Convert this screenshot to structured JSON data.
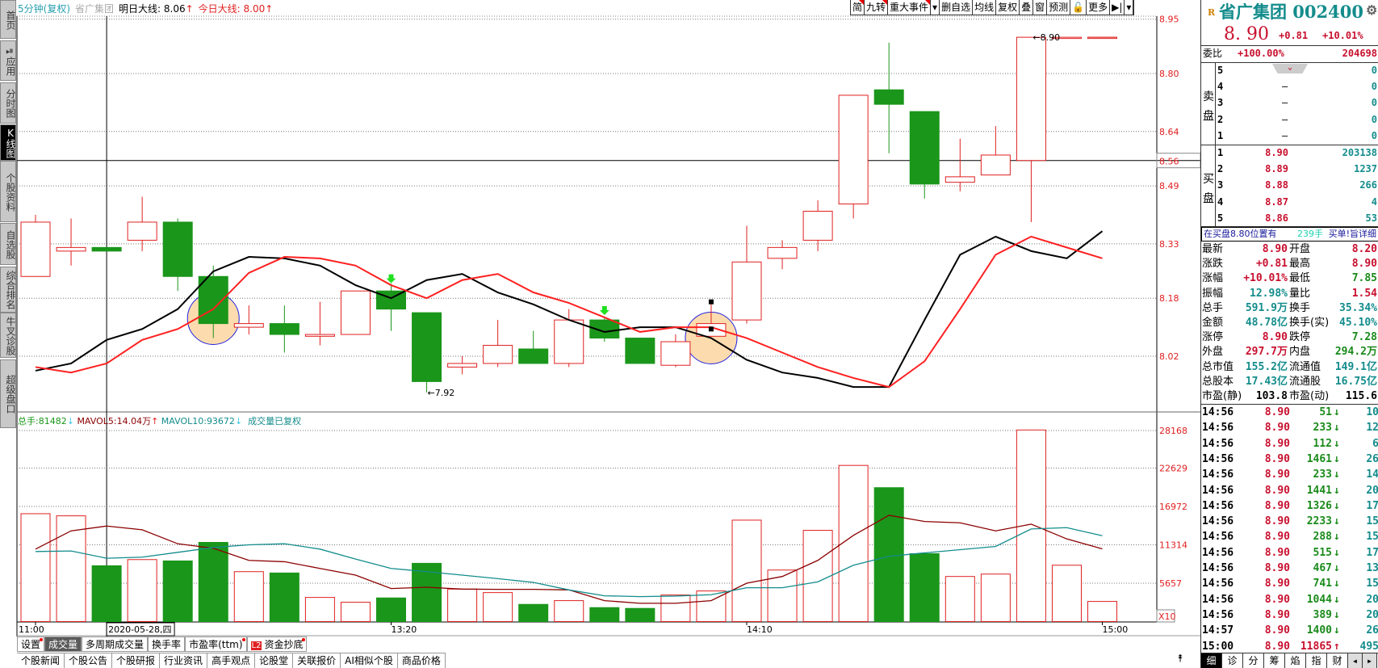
{
  "sidebar": {
    "tabs": [
      "首页",
      "应用",
      "分时图",
      "K线图",
      "个股资料",
      "自选股",
      "综合排名",
      "牛叉诊股",
      "超级盘口"
    ],
    "active": "K线图"
  },
  "header": {
    "period": "5分钟(复权)",
    "name": "省广集团",
    "tomorrow_label": "明日大线:",
    "tomorrow_value": "8.06",
    "today_label": "今日大线:",
    "today_value": "8.00",
    "arrow": "↑"
  },
  "toolbar": {
    "buttons": [
      "简",
      "九转",
      "重大事件",
      "▾",
      "删自选",
      "均线",
      "复权",
      "叠",
      "窗",
      "预测",
      "🔓",
      "更多",
      "▶|",
      "▾"
    ]
  },
  "chart_data": [
    {
      "type": "candlestick",
      "interval": "5分钟",
      "y_ticks": [
        8.95,
        8.8,
        8.64,
        8.49,
        8.33,
        8.18,
        8.02
      ],
      "current_price_line": 8.56,
      "ohlc": [
        [
          8.24,
          8.41,
          8.24,
          8.39
        ],
        [
          8.31,
          8.4,
          8.27,
          8.32
        ],
        [
          8.32,
          8.32,
          8.31,
          8.31
        ],
        [
          8.34,
          8.46,
          8.31,
          8.39
        ],
        [
          8.39,
          8.4,
          8.2,
          8.24
        ],
        [
          8.24,
          8.27,
          8.07,
          8.11
        ],
        [
          8.1,
          8.16,
          8.08,
          8.11
        ],
        [
          8.11,
          8.16,
          8.03,
          8.08
        ],
        [
          8.075,
          8.17,
          8.05,
          8.08
        ],
        [
          8.08,
          8.2,
          8.08,
          8.2
        ],
        [
          8.2,
          8.22,
          8.09,
          8.15
        ],
        [
          8.14,
          8.14,
          7.92,
          7.95
        ],
        [
          7.99,
          8.02,
          7.97,
          8.0
        ],
        [
          8.0,
          8.12,
          7.99,
          8.05
        ],
        [
          8.04,
          8.09,
          8.0,
          8.0
        ],
        [
          8.0,
          8.15,
          7.99,
          8.12
        ],
        [
          8.12,
          8.13,
          8.06,
          8.07
        ],
        [
          8.07,
          8.07,
          8.0,
          8.0
        ],
        [
          7.995,
          8.08,
          7.99,
          8.06
        ],
        [
          8.075,
          8.17,
          8.075,
          8.11
        ],
        [
          8.12,
          8.38,
          8.11,
          8.28
        ],
        [
          8.29,
          8.34,
          8.26,
          8.32
        ],
        [
          8.34,
          8.45,
          8.31,
          8.42
        ],
        [
          8.44,
          8.74,
          8.4,
          8.74
        ],
        [
          8.755,
          8.885,
          8.58,
          8.715
        ],
        [
          8.695,
          8.695,
          8.455,
          8.495
        ],
        [
          8.5,
          8.62,
          8.475,
          8.515
        ],
        [
          8.52,
          8.655,
          8.52,
          8.575
        ],
        [
          8.56,
          8.9,
          8.39,
          8.9
        ],
        [
          8.9,
          8.9,
          8.9,
          8.9
        ],
        [
          8.9,
          8.9,
          8.9,
          8.9
        ]
      ],
      "ma_black": [
        7.98,
        8.0,
        8.065,
        8.095,
        8.15,
        8.254,
        8.294,
        8.29,
        8.27,
        8.216,
        8.18,
        8.23,
        8.247,
        8.196,
        8.163,
        8.12,
        8.087,
        8.1,
        8.1,
        8.07,
        8.01,
        7.975,
        7.96,
        7.935,
        7.935,
        8.12,
        8.3,
        8.35,
        8.31,
        8.29,
        8.365
      ],
      "ma_red": [
        7.99,
        7.975,
        8.0,
        8.065,
        8.095,
        8.15,
        8.25,
        8.294,
        8.29,
        8.27,
        8.216,
        8.18,
        8.23,
        8.247,
        8.196,
        8.167,
        8.127,
        8.087,
        8.1,
        8.1,
        8.07,
        8.03,
        7.99,
        7.96,
        7.935,
        8.006,
        8.15,
        8.3,
        8.35,
        8.32,
        8.29
      ],
      "high_label": "8.90",
      "low_label": "7.92",
      "highlight_circles": [
        5,
        19
      ],
      "down_arrows": [
        10,
        16
      ],
      "time_labels": [
        {
          "index": 0,
          "text": "11:00"
        },
        {
          "index": 10,
          "text": "13:20"
        },
        {
          "index": 20,
          "text": "14:10"
        },
        {
          "index": 30,
          "text": "15:00"
        }
      ],
      "crosshair": {
        "index": 2,
        "date": "2020-05-28,四"
      }
    },
    {
      "type": "bar",
      "title_items": {
        "total_label": "总手:",
        "total": "81482",
        "mavol5_label": "MAVOL5:",
        "mavol5": "14.04万",
        "mavol10_label": "MAVOL10:",
        "mavol10": "93672",
        "note": "成交量已复权"
      },
      "y_ticks": [
        28168,
        22629,
        16972,
        11314,
        5657
      ],
      "unit": "X10",
      "values": [
        15903,
        15587,
        8229,
        9138,
        8941,
        11670,
        7358,
        7160,
        3560,
        2848,
        3481,
        8585,
        4787,
        4272,
        2532,
        3086,
        2057,
        1938,
        3916,
        4510,
        14954,
        7596,
        13451,
        23024,
        19741,
        10009,
        6646,
        7002,
        28245,
        8308,
        2967
      ],
      "mavol5": [
        10681,
        13371,
        14083,
        13529,
        11472,
        10800,
        9020,
        8823,
        7833,
        6844,
        4866,
        5064,
        4787,
        4747,
        4747,
        4668,
        3086,
        2690,
        2690,
        3086,
        5657,
        6646,
        9020,
        12700,
        15666,
        14756,
        14558,
        13371,
        14360,
        12185,
        10721
      ],
      "mavol10": [
        10325,
        10404,
        9336,
        9494,
        10206,
        10918,
        11314,
        11472,
        10681,
        9217,
        7833,
        7358,
        6844,
        6329,
        5776,
        4668,
        3798,
        3679,
        3758,
        3956,
        4985,
        4985,
        5855,
        8308,
        9613,
        10127,
        10602,
        11077,
        13648,
        13846,
        12659
      ]
    }
  ],
  "colors": {
    "up": "#e02020",
    "down": "#1a961a",
    "ma_black": "#000000",
    "ma_red": "#ff2020",
    "mavol5": "#8b0000",
    "mavol10": "#148c8c"
  },
  "indicator_tabs": [
    {
      "label": "设置",
      "flag": true
    },
    {
      "label": "成交量",
      "active": true
    },
    {
      "label": "多周期成交量"
    },
    {
      "label": "换手率"
    },
    {
      "label": "市盈率(ttm)",
      "flag": true
    },
    {
      "label": "资金抄底",
      "badge": "L2",
      "flag": true
    }
  ],
  "news_tabs": [
    "个股新闻",
    "个股公告",
    "个股研报",
    "行业资讯",
    "高手观点",
    "论股堂",
    "关联报价",
    "AI相似个股",
    "商品价格"
  ],
  "quote": {
    "badge": "R",
    "title": "省广集团 002400",
    "price": "8. 90",
    "change": "+0.81",
    "change_pct": "+10.01%",
    "weibi_label": "委比",
    "weibi": "+100.00%",
    "weicha": "204698",
    "sell_label": "卖盘",
    "buy_label": "买盘",
    "asks": [
      {
        "n": "5",
        "p": "",
        "v": "0"
      },
      {
        "n": "4",
        "p": "–",
        "v": "0"
      },
      {
        "n": "3",
        "p": "–",
        "v": "0"
      },
      {
        "n": "2",
        "p": "–",
        "v": "0"
      },
      {
        "n": "1",
        "p": "–",
        "v": "0"
      }
    ],
    "bids": [
      {
        "n": "1",
        "p": "8.90",
        "v": "203138"
      },
      {
        "n": "2",
        "p": "8.89",
        "v": "1237"
      },
      {
        "n": "3",
        "p": "8.88",
        "v": "266"
      },
      {
        "n": "4",
        "p": "8.87",
        "v": "4"
      },
      {
        "n": "5",
        "p": "8.86",
        "v": "53"
      }
    ],
    "info_bar": {
      "text": "在买盘8.80位置有",
      "qty": "239手",
      "link": "买单!旨详细"
    },
    "stats": [
      [
        "最新",
        "8.90",
        "r",
        "开盘",
        "8.20",
        "r"
      ],
      [
        "涨跌",
        "+0.81",
        "r",
        "最高",
        "8.90",
        "r"
      ],
      [
        "涨幅",
        "+10.01%",
        "r",
        "最低",
        "7.85",
        "g"
      ],
      [
        "振幅",
        "12.98%",
        "tl",
        "量比",
        "1.54",
        "r"
      ],
      [
        "总手",
        "591.9万",
        "tl",
        "换手",
        "35.34%",
        "tl"
      ],
      [
        "金额",
        "48.78亿",
        "tl",
        "换手(实)",
        "45.10%",
        "tl"
      ],
      [
        "涨停",
        "8.90",
        "r",
        "跌停",
        "7.28",
        "g"
      ],
      [
        "外盘",
        "297.7万",
        "r",
        "内盘",
        "294.2万",
        "g"
      ],
      [
        "总市值",
        "155.2亿",
        "tl",
        "流通值",
        "149.1亿",
        "tl"
      ],
      [
        "总股本",
        "17.43亿",
        "tl",
        "流通股",
        "16.75亿",
        "tl"
      ],
      [
        "市盈(静)",
        "103.8",
        "k",
        "市盈(动)",
        "115.6",
        "k"
      ]
    ],
    "ticks": [
      [
        "14:56",
        "8.90",
        "51",
        "↓",
        "10"
      ],
      [
        "14:56",
        "8.90",
        "233",
        "↓",
        "12"
      ],
      [
        "14:56",
        "8.90",
        "112",
        "↓",
        "6"
      ],
      [
        "14:56",
        "8.90",
        "1461",
        "↓",
        "26"
      ],
      [
        "14:56",
        "8.90",
        "233",
        "↓",
        "14"
      ],
      [
        "14:56",
        "8.90",
        "1441",
        "↓",
        "20"
      ],
      [
        "14:56",
        "8.90",
        "1326",
        "↓",
        "17"
      ],
      [
        "14:56",
        "8.90",
        "2233",
        "↓",
        "15"
      ],
      [
        "14:56",
        "8.90",
        "288",
        "↓",
        "15"
      ],
      [
        "14:56",
        "8.90",
        "515",
        "↓",
        "17"
      ],
      [
        "14:56",
        "8.90",
        "467",
        "↓",
        "13"
      ],
      [
        "14:56",
        "8.90",
        "741",
        "↓",
        "15"
      ],
      [
        "14:56",
        "8.90",
        "1044",
        "↓",
        "20"
      ],
      [
        "14:56",
        "8.90",
        "389",
        "↓",
        "20"
      ],
      [
        "14:57",
        "8.90",
        "1400",
        "↓",
        "26"
      ],
      [
        "15:00",
        "8.90",
        "11865",
        "↑",
        "495"
      ]
    ],
    "bottom_tabs": [
      "细",
      "诊",
      "分",
      "筹",
      "焰",
      "指",
      "财"
    ],
    "active_bottom": "细",
    "nav": [
      "◂",
      "▸"
    ]
  }
}
